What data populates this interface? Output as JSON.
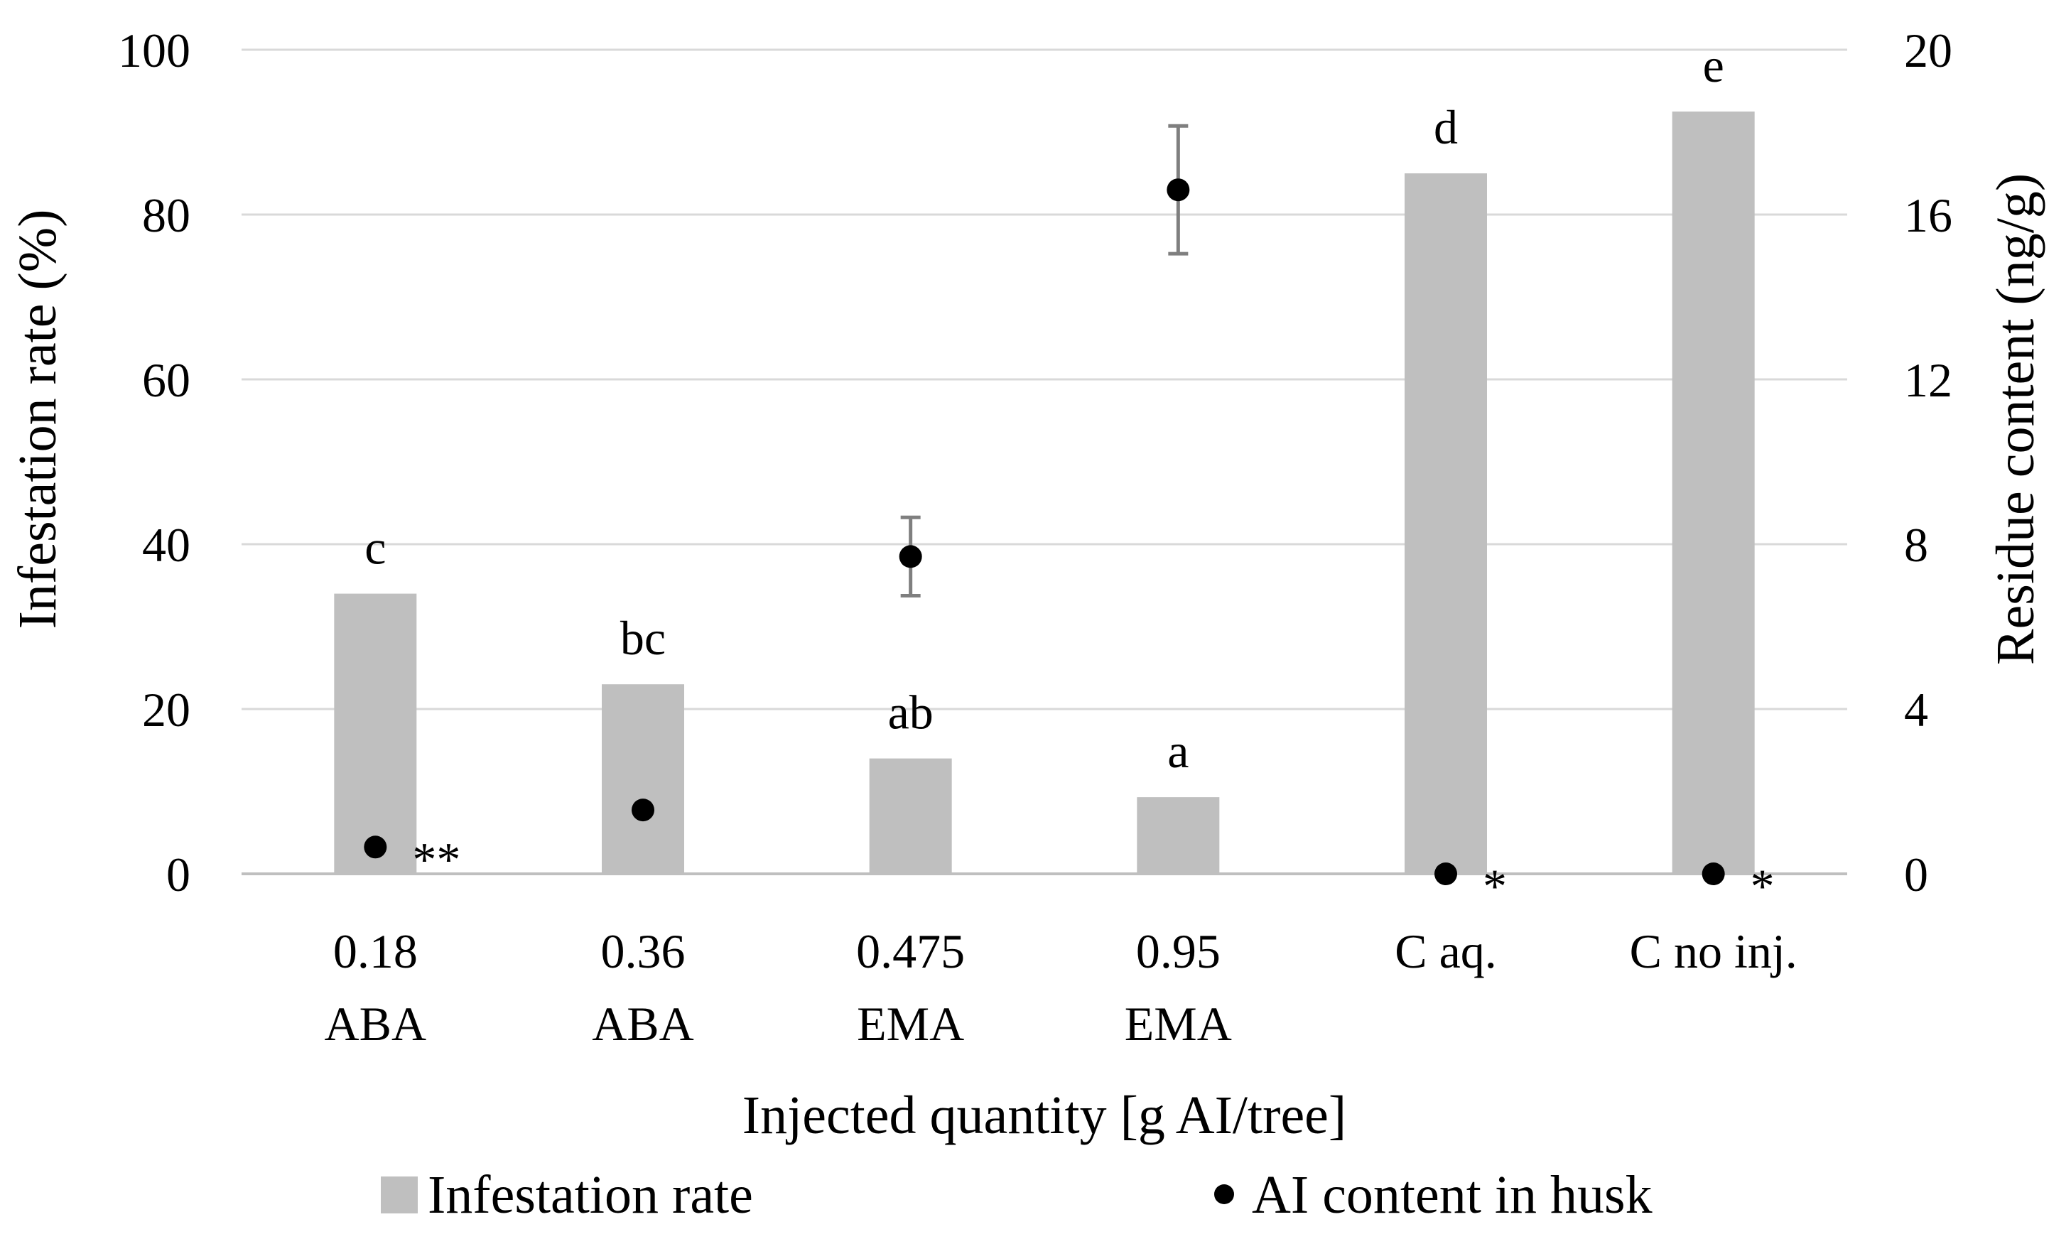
{
  "chart_data": {
    "type": "bar",
    "xlabel": "Injected quantity  [g AI/tree]",
    "ylabel": "Infestation rate (%)",
    "ylabel_right": "Residue content  (ng/g)",
    "ylim": [
      0,
      100
    ],
    "y_ticks": [
      "0",
      "20",
      "40",
      "60",
      "80",
      "100"
    ],
    "ylim_right": [
      0,
      20
    ],
    "y_ticks_right": [
      "0",
      "4",
      "8",
      "12",
      "16",
      "20"
    ],
    "grid": true,
    "categories": [
      [
        "0.18",
        "ABA"
      ],
      [
        "0.36",
        "ABA"
      ],
      [
        "0.475",
        "EMA"
      ],
      [
        "0.95",
        "EMA"
      ],
      [
        "C aq."
      ],
      [
        "C no inj."
      ]
    ],
    "series": [
      {
        "name": "Infestation rate",
        "type": "bar",
        "axis": "left",
        "color": "#bfbfbf",
        "values": [
          34,
          23,
          14,
          9.3,
          85,
          92.5
        ],
        "letters": [
          "c",
          "bc",
          "ab",
          "a",
          "d",
          "e"
        ]
      },
      {
        "name": "AI content in husk",
        "type": "scatter",
        "axis": "right",
        "color": "#000000",
        "values": [
          0.65,
          1.55,
          7.7,
          16.6,
          0,
          0
        ],
        "errors": [
          0,
          0,
          0.95,
          1.55,
          0,
          0
        ],
        "annotations": [
          "**",
          "",
          "",
          "",
          "*",
          "*"
        ]
      }
    ],
    "legend": {
      "position": "bottom",
      "items": [
        "Infestation rate",
        "AI content in husk"
      ]
    }
  }
}
